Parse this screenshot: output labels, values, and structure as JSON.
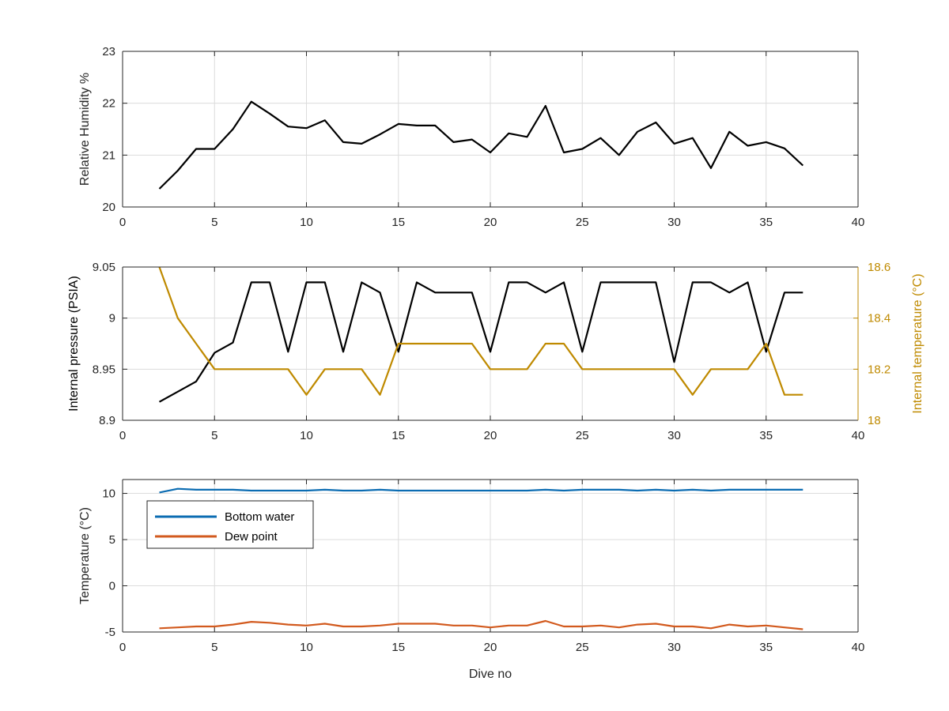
{
  "colors": {
    "black": "#000000",
    "gold": "#BF8A00",
    "blue": "#0B6CB2",
    "orange": "#D25A1E",
    "grid": "#DCDCDC",
    "axis": "#262626"
  },
  "chart_data": [
    {
      "type": "line",
      "title": "",
      "xlabel": "",
      "ylabel": "Relative Humidity %",
      "xlim": [
        0,
        40
      ],
      "ylim": [
        20,
        23
      ],
      "xticks": [
        "0",
        "5",
        "10",
        "15",
        "20",
        "25",
        "30",
        "35",
        "40"
      ],
      "yticks": [
        "20",
        "21",
        "22",
        "23"
      ],
      "grid": true,
      "series": [
        {
          "color": "#000000",
          "x": [
            2,
            3,
            4,
            5,
            6,
            7,
            8,
            9,
            10,
            11,
            12,
            13,
            14,
            15,
            16,
            17,
            18,
            19,
            20,
            21,
            22,
            23,
            24,
            25,
            26,
            27,
            28,
            29,
            30,
            31,
            32,
            33,
            34,
            35,
            36,
            37
          ],
          "y": [
            20.35,
            20.7,
            21.12,
            21.12,
            21.5,
            22.03,
            21.8,
            21.55,
            21.52,
            21.67,
            21.25,
            21.22,
            21.4,
            21.6,
            21.57,
            21.57,
            21.25,
            21.3,
            21.05,
            21.42,
            21.35,
            21.95,
            21.05,
            21.12,
            21.33,
            21.0,
            21.45,
            21.63,
            21.22,
            21.33,
            20.75,
            21.45,
            21.18,
            21.25,
            21.13,
            20.8
          ]
        }
      ]
    },
    {
      "type": "line",
      "title": "",
      "xlabel": "",
      "ylabel": "Internal pressure (PSIA)",
      "ylabel_right": "Internal temperature (°C)",
      "xlim": [
        0,
        40
      ],
      "ylim": [
        8.9,
        9.05
      ],
      "ylim_right": [
        18,
        18.6
      ],
      "xticks": [
        "0",
        "5",
        "10",
        "15",
        "20",
        "25",
        "30",
        "35",
        "40"
      ],
      "yticks": [
        "8.9",
        "8.95",
        "9",
        "9.05"
      ],
      "yticks_right": [
        "18",
        "18.2",
        "18.4",
        "18.6"
      ],
      "grid": true,
      "series": [
        {
          "axis": "left",
          "color": "#000000",
          "x": [
            2,
            3,
            4,
            5,
            6,
            7,
            8,
            9,
            10,
            11,
            12,
            13,
            14,
            15,
            16,
            17,
            18,
            19,
            20,
            21,
            22,
            23,
            24,
            25,
            26,
            27,
            28,
            29,
            30,
            31,
            32,
            33,
            34,
            35,
            36,
            37
          ],
          "y": [
            8.918,
            8.928,
            8.938,
            8.966,
            8.976,
            9.035,
            9.035,
            8.967,
            9.035,
            9.035,
            8.967,
            9.035,
            9.025,
            8.967,
            9.035,
            9.025,
            9.025,
            9.025,
            8.967,
            9.035,
            9.035,
            9.025,
            9.035,
            8.967,
            9.035,
            9.035,
            9.035,
            9.035,
            8.957,
            9.035,
            9.035,
            9.025,
            9.035,
            8.967,
            9.025,
            9.025
          ]
        },
        {
          "axis": "right",
          "color": "#BF8A00",
          "x": [
            2,
            3,
            4,
            5,
            6,
            7,
            8,
            9,
            10,
            11,
            12,
            13,
            14,
            15,
            16,
            17,
            18,
            19,
            20,
            21,
            22,
            23,
            24,
            25,
            26,
            27,
            28,
            29,
            30,
            31,
            32,
            33,
            34,
            35,
            36,
            37
          ],
          "y": [
            18.6,
            18.4,
            18.3,
            18.2,
            18.2,
            18.2,
            18.2,
            18.2,
            18.1,
            18.2,
            18.2,
            18.2,
            18.1,
            18.3,
            18.3,
            18.3,
            18.3,
            18.3,
            18.2,
            18.2,
            18.2,
            18.3,
            18.3,
            18.2,
            18.2,
            18.2,
            18.2,
            18.2,
            18.2,
            18.1,
            18.2,
            18.2,
            18.2,
            18.3,
            18.1,
            18.1
          ]
        }
      ]
    },
    {
      "type": "line",
      "title": "",
      "xlabel": "Dive no",
      "ylabel": "Temperature (°C)",
      "xlim": [
        0,
        40
      ],
      "ylim": [
        -5,
        11.5
      ],
      "xticks": [
        "0",
        "5",
        "10",
        "15",
        "20",
        "25",
        "30",
        "35",
        "40"
      ],
      "yticks": [
        "-5",
        "0",
        "5",
        "10"
      ],
      "grid": true,
      "legend": "top-left",
      "series": [
        {
          "name": "Bottom water",
          "color": "#0B6CB2",
          "x": [
            2,
            3,
            4,
            5,
            6,
            7,
            8,
            9,
            10,
            11,
            12,
            13,
            14,
            15,
            16,
            17,
            18,
            19,
            20,
            21,
            22,
            23,
            24,
            25,
            26,
            27,
            28,
            29,
            30,
            31,
            32,
            33,
            34,
            35,
            36,
            37
          ],
          "y": [
            10.1,
            10.5,
            10.4,
            10.4,
            10.4,
            10.3,
            10.3,
            10.3,
            10.3,
            10.4,
            10.3,
            10.3,
            10.4,
            10.3,
            10.3,
            10.3,
            10.3,
            10.3,
            10.3,
            10.3,
            10.3,
            10.4,
            10.3,
            10.4,
            10.4,
            10.4,
            10.3,
            10.4,
            10.3,
            10.4,
            10.3,
            10.4,
            10.4,
            10.4,
            10.4,
            10.4
          ]
        },
        {
          "name": "Dew point",
          "color": "#D25A1E",
          "x": [
            2,
            3,
            4,
            5,
            6,
            7,
            8,
            9,
            10,
            11,
            12,
            13,
            14,
            15,
            16,
            17,
            18,
            19,
            20,
            21,
            22,
            23,
            24,
            25,
            26,
            27,
            28,
            29,
            30,
            31,
            32,
            33,
            34,
            35,
            36,
            37
          ],
          "y": [
            -4.6,
            -4.5,
            -4.4,
            -4.4,
            -4.2,
            -3.9,
            -4.0,
            -4.2,
            -4.3,
            -4.1,
            -4.4,
            -4.4,
            -4.3,
            -4.1,
            -4.1,
            -4.1,
            -4.3,
            -4.3,
            -4.5,
            -4.3,
            -4.3,
            -3.8,
            -4.4,
            -4.4,
            -4.3,
            -4.5,
            -4.2,
            -4.1,
            -4.4,
            -4.4,
            -4.6,
            -4.2,
            -4.4,
            -4.3,
            -4.5,
            -4.7
          ]
        }
      ]
    }
  ]
}
